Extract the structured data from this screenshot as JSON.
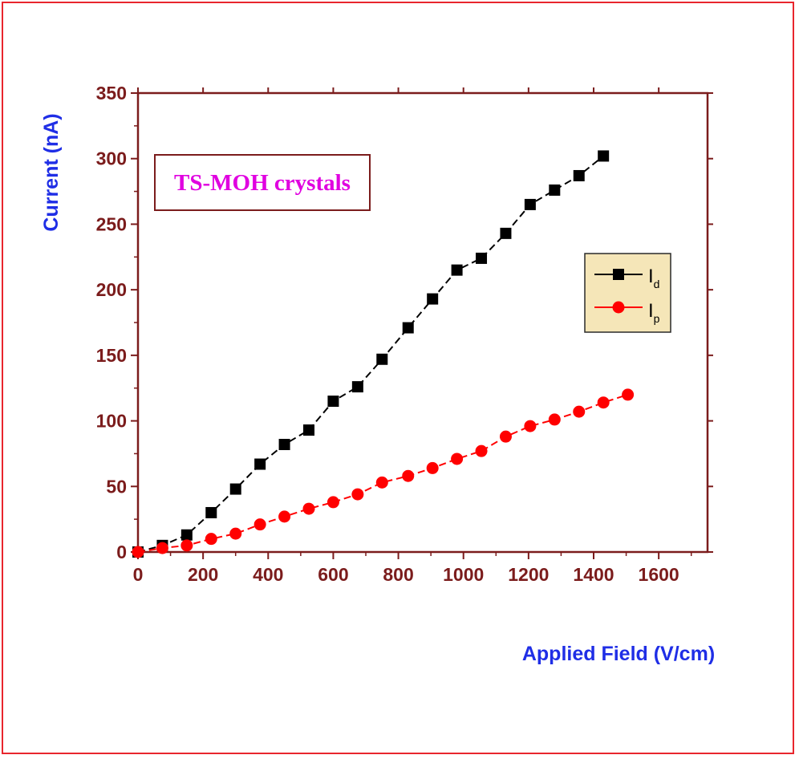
{
  "chart_data": {
    "type": "line",
    "title": "",
    "annotation": "TS-MOH crystals",
    "xlabel": "Applied Field (V/cm)",
    "ylabel": "Current (nA)",
    "xlim": [
      0,
      1750
    ],
    "ylim": [
      0,
      350
    ],
    "xticks": [
      0,
      200,
      400,
      600,
      800,
      1000,
      1200,
      1400,
      1600
    ],
    "yticks": [
      0,
      50,
      100,
      150,
      200,
      250,
      300,
      350
    ],
    "grid": false,
    "legend_position": "right",
    "series": [
      {
        "name": "I",
        "subscript": "d",
        "marker": "square",
        "line": "dashed",
        "color": "#000000",
        "x": [
          0,
          75,
          150,
          225,
          300,
          375,
          450,
          525,
          600,
          675,
          750,
          830,
          905,
          980,
          1055,
          1130,
          1205,
          1280,
          1355,
          1430
        ],
        "y": [
          0,
          5,
          13,
          30,
          48,
          67,
          82,
          93,
          115,
          126,
          147,
          171,
          193,
          215,
          224,
          243,
          265,
          276,
          287,
          302
        ]
      },
      {
        "name": "I",
        "subscript": "p",
        "marker": "circle",
        "line": "dashed",
        "color": "#ff0000",
        "x": [
          0,
          75,
          150,
          225,
          300,
          375,
          450,
          525,
          600,
          675,
          750,
          830,
          905,
          980,
          1055,
          1130,
          1205,
          1280,
          1355,
          1430,
          1505
        ],
        "y": [
          0,
          3,
          5,
          10,
          14,
          21,
          27,
          33,
          38,
          44,
          53,
          58,
          64,
          71,
          77,
          88,
          96,
          101,
          107,
          114,
          120
        ]
      }
    ]
  },
  "colors": {
    "frame": "#e8262d",
    "axis": "#7b1c1c",
    "tick_label": "#7b1c1c",
    "axis_title": "#1f2ee6",
    "annotation_text": "#e000e0",
    "annotation_border": "#7b1c1c",
    "legend_bg": "#f5e6b8",
    "legend_border": "#2a2a2a"
  }
}
